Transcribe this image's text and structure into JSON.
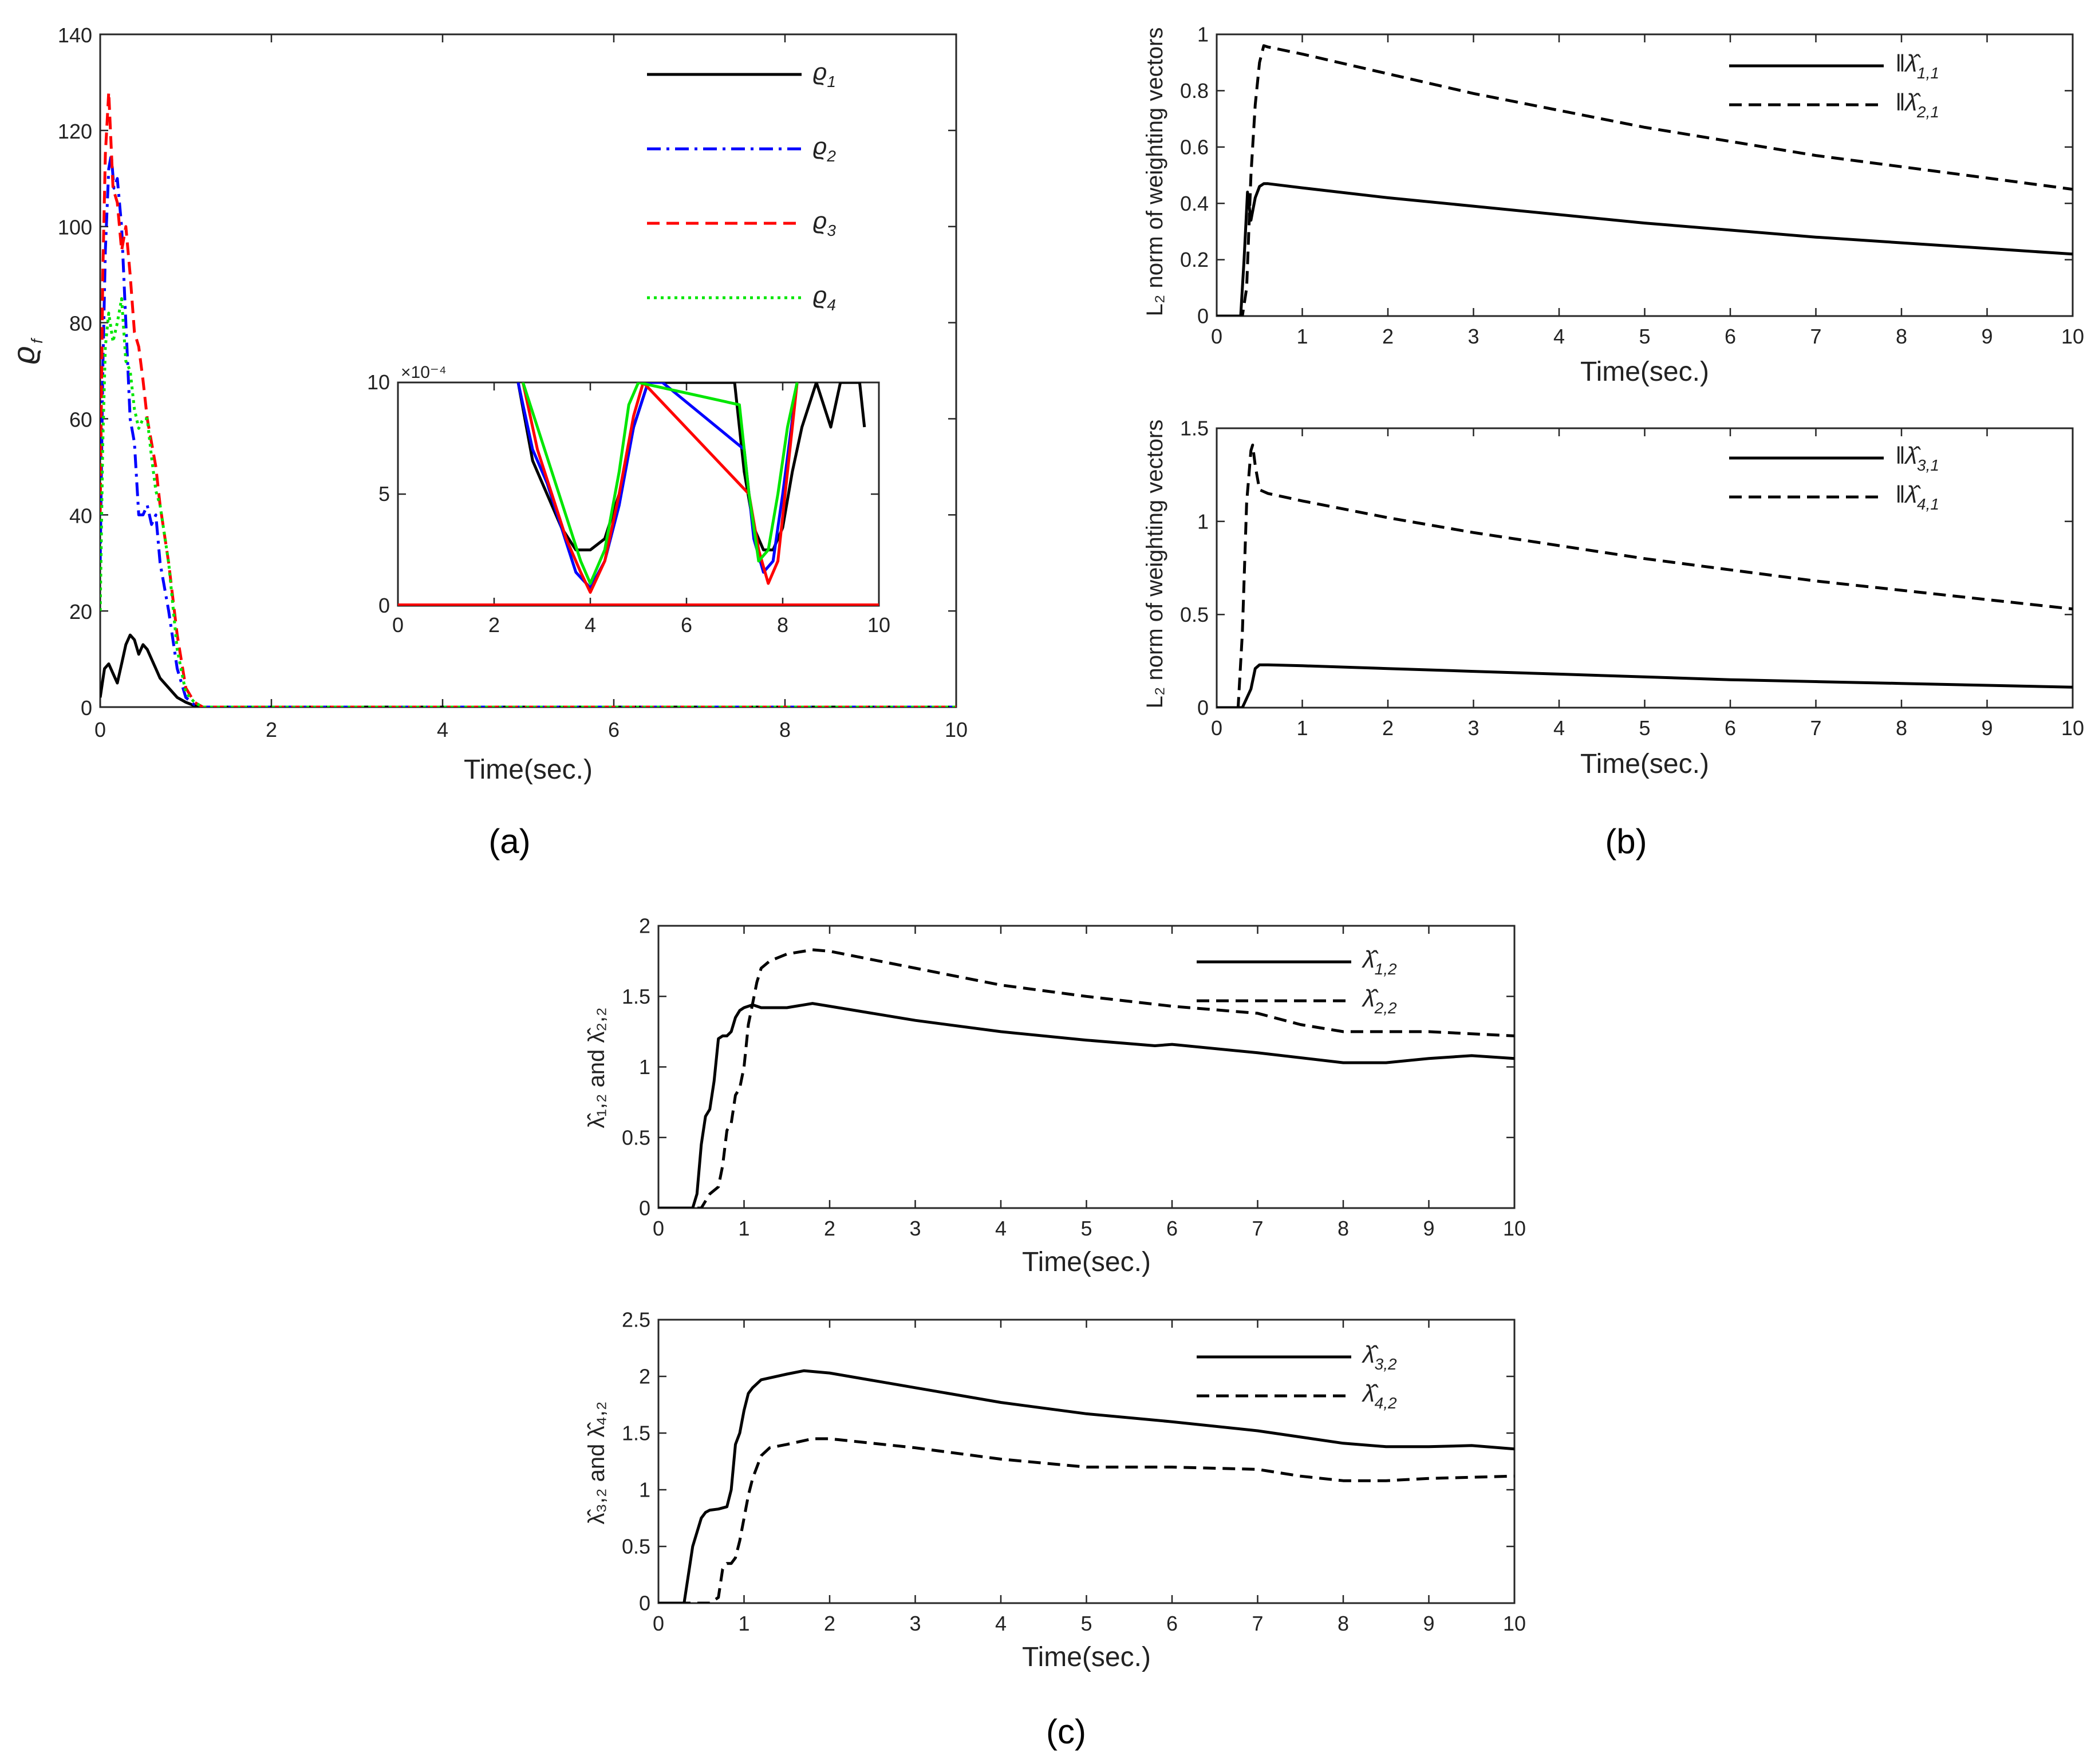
{
  "captions": {
    "a": "(a)",
    "b": "(b)",
    "c": "(c)"
  },
  "colors": {
    "axis": "#262626",
    "s1": "#000000",
    "s2": "#0000ff",
    "s3": "#ff0000",
    "s4": "#00e600"
  },
  "panel_a_ylabel": "ϱ",
  "panel_a_ylabel_sub": "f",
  "inset_exponent": "×10⁻⁴",
  "ylabel_norm": "L₂ norm of weighting vectors",
  "ylabel_c1": "λ̂̂₁,₂ and λ̂̂₂,₂",
  "ylabel_c2": "λ̂̂₃,₂ and λ̂̂₄,₂",
  "chart_data": [
    {
      "id": "a_main",
      "type": "line",
      "xlabel": "Time(sec.)",
      "ylabel": "ϱf",
      "xlim": [
        0,
        10
      ],
      "ylim": [
        0,
        140
      ],
      "xticks": [
        0,
        2,
        4,
        6,
        8,
        10
      ],
      "yticks": [
        0,
        20,
        40,
        60,
        80,
        100,
        120,
        140
      ],
      "series": [
        {
          "name": "ϱ",
          "sub": "1",
          "color": "#000000",
          "dash": "solid",
          "x": [
            0,
            0.05,
            0.1,
            0.15,
            0.2,
            0.25,
            0.3,
            0.35,
            0.4,
            0.45,
            0.5,
            0.55,
            0.6,
            0.65,
            0.7,
            0.8,
            0.9,
            1.0,
            1.1,
            1.2,
            10
          ],
          "y": [
            2,
            8,
            9,
            7,
            5,
            9,
            13,
            15,
            14,
            11,
            13,
            12,
            10,
            8,
            6,
            4,
            2,
            1,
            0.3,
            0,
            0
          ]
        },
        {
          "name": "ϱ",
          "sub": "2",
          "color": "#0000ff",
          "dash": "dashdot",
          "x": [
            0,
            0.03,
            0.06,
            0.1,
            0.13,
            0.16,
            0.2,
            0.25,
            0.3,
            0.35,
            0.4,
            0.45,
            0.5,
            0.55,
            0.6,
            0.65,
            0.7,
            0.8,
            0.9,
            1.0,
            1.1,
            1.2,
            10
          ],
          "y": [
            30,
            70,
            95,
            112,
            115,
            108,
            110,
            100,
            80,
            60,
            55,
            40,
            40,
            42,
            38,
            40,
            30,
            20,
            8,
            2,
            0.5,
            0,
            0
          ]
        },
        {
          "name": "ϱ",
          "sub": "3",
          "color": "#ff0000",
          "dash": "dashed",
          "x": [
            0,
            0.03,
            0.06,
            0.1,
            0.12,
            0.15,
            0.2,
            0.25,
            0.3,
            0.35,
            0.4,
            0.45,
            0.5,
            0.55,
            0.6,
            0.65,
            0.7,
            0.8,
            0.9,
            1.0,
            1.1,
            1.2,
            10
          ],
          "y": [
            40,
            90,
            115,
            128,
            120,
            108,
            105,
            95,
            100,
            90,
            78,
            75,
            68,
            60,
            55,
            50,
            42,
            30,
            15,
            4,
            1,
            0,
            0
          ]
        },
        {
          "name": "ϱ",
          "sub": "4",
          "color": "#00e600",
          "dash": "dotted",
          "x": [
            0,
            0.03,
            0.06,
            0.1,
            0.15,
            0.2,
            0.25,
            0.3,
            0.35,
            0.4,
            0.45,
            0.5,
            0.55,
            0.6,
            0.65,
            0.7,
            0.8,
            0.9,
            1.0,
            1.1,
            1.2,
            10
          ],
          "y": [
            20,
            55,
            75,
            82,
            76,
            80,
            85,
            72,
            70,
            62,
            58,
            60,
            60,
            52,
            45,
            42,
            30,
            12,
            3,
            1,
            0,
            0
          ]
        }
      ]
    },
    {
      "id": "a_inset",
      "type": "line",
      "xlabel": "",
      "ylabel": "",
      "xlim": [
        0,
        10
      ],
      "ylim": [
        0,
        10
      ],
      "xticks": [
        0,
        2,
        4,
        6,
        8,
        10
      ],
      "yticks": [
        0,
        5,
        10
      ],
      "series": [
        {
          "name": "ϱ1",
          "color": "#000000",
          "dash": "solid",
          "x": [
            2.5,
            2.8,
            3.1,
            3.4,
            3.7,
            4.0,
            4.3,
            4.6,
            4.9,
            5.2,
            7.0,
            7.2,
            7.4,
            7.6,
            7.8,
            8.0,
            8.2,
            8.4,
            8.7,
            9.0,
            9.2,
            9.6,
            9.7
          ],
          "y": [
            10,
            6.5,
            5,
            3.5,
            2.5,
            2.5,
            3,
            5,
            8,
            10,
            10,
            6,
            3.5,
            2.5,
            2.5,
            3.5,
            6,
            8,
            10,
            8,
            10,
            10,
            8
          ]
        },
        {
          "name": "ϱ2",
          "color": "#0000ff",
          "dash": "solid",
          "x": [
            2.5,
            2.8,
            3.1,
            3.4,
            3.7,
            4.0,
            4.3,
            4.6,
            4.9,
            5.2,
            5.5,
            7.2,
            7.4,
            7.6,
            7.8,
            8.0,
            8.3
          ],
          "y": [
            10,
            7,
            5.5,
            3.5,
            1.5,
            0.8,
            2,
            4.5,
            8,
            10,
            10,
            7,
            3,
            1.5,
            2,
            5,
            10
          ]
        },
        {
          "name": "ϱ3",
          "color": "#ff0000",
          "dash": "solid",
          "x": [
            2.6,
            2.9,
            3.2,
            3.5,
            3.8,
            4.0,
            4.3,
            4.6,
            4.9,
            5.1,
            7.3,
            7.5,
            7.7,
            7.9,
            8.1,
            8.3
          ],
          "y": [
            10,
            7,
            5,
            3,
            1.5,
            0.6,
            2,
            5,
            8.5,
            10,
            5,
            2.5,
            1,
            2,
            6,
            10
          ]
        },
        {
          "name": "ϱ4",
          "color": "#00e600",
          "dash": "solid",
          "x": [
            2.6,
            2.9,
            3.2,
            3.5,
            3.8,
            4.0,
            4.3,
            4.6,
            4.8,
            5.0,
            7.1,
            7.3,
            7.5,
            7.7,
            7.9,
            8.1,
            8.3
          ],
          "y": [
            10,
            8,
            6,
            4,
            2,
            1,
            2.5,
            6,
            9,
            10,
            9,
            5,
            2,
            2.5,
            5,
            8,
            10
          ]
        },
        {
          "name": "baseline",
          "color": "#ff0000",
          "dash": "solid",
          "width": 8,
          "x": [
            0,
            10
          ],
          "y": [
            0,
            0
          ]
        }
      ]
    },
    {
      "id": "b_top",
      "type": "line",
      "xlabel": "Time(sec.)",
      "ylabel": "L2 norm of weighting vectors",
      "xlim": [
        0,
        10
      ],
      "ylim": [
        0,
        1
      ],
      "xticks": [
        0,
        1,
        2,
        3,
        4,
        5,
        6,
        7,
        8,
        9,
        10
      ],
      "yticks": [
        0,
        0.2,
        0.4,
        0.6,
        0.8,
        1
      ],
      "series": [
        {
          "name": "‖λ̂",
          "sub": "1,1",
          "color": "#000000",
          "dash": "solid",
          "x": [
            0,
            0.28,
            0.32,
            0.36,
            0.4,
            0.45,
            0.5,
            0.55,
            0.6,
            1,
            2,
            3,
            4,
            5,
            6,
            7,
            8,
            9,
            10
          ],
          "y": [
            0,
            0,
            0.2,
            0.44,
            0.34,
            0.42,
            0.46,
            0.47,
            0.47,
            0.455,
            0.42,
            0.39,
            0.36,
            0.33,
            0.305,
            0.28,
            0.26,
            0.24,
            0.22
          ]
        },
        {
          "name": "‖λ̂",
          "sub": "2,1",
          "color": "#000000",
          "dash": "dashed",
          "x": [
            0,
            0.3,
            0.35,
            0.4,
            0.45,
            0.5,
            0.55,
            0.6,
            1,
            2,
            3,
            4,
            5,
            6,
            7,
            8,
            9,
            10
          ],
          "y": [
            0,
            0,
            0.1,
            0.5,
            0.75,
            0.9,
            0.96,
            0.955,
            0.93,
            0.86,
            0.79,
            0.73,
            0.67,
            0.62,
            0.57,
            0.53,
            0.49,
            0.45
          ]
        }
      ]
    },
    {
      "id": "b_bottom",
      "type": "line",
      "xlabel": "Time(sec.)",
      "ylabel": "L2 norm of weighting vectors",
      "xlim": [
        0,
        10
      ],
      "ylim": [
        0,
        1.5
      ],
      "xticks": [
        0,
        1,
        2,
        3,
        4,
        5,
        6,
        7,
        8,
        9,
        10
      ],
      "yticks": [
        0,
        0.5,
        1,
        1.5
      ],
      "series": [
        {
          "name": "‖λ̂",
          "sub": "3,1",
          "color": "#000000",
          "dash": "solid",
          "x": [
            0,
            0.3,
            0.4,
            0.45,
            0.5,
            0.6,
            1,
            2,
            3,
            4,
            5,
            6,
            7,
            8,
            9,
            10
          ],
          "y": [
            0,
            0,
            0.1,
            0.21,
            0.23,
            0.23,
            0.225,
            0.21,
            0.195,
            0.18,
            0.165,
            0.15,
            0.14,
            0.13,
            0.12,
            0.11
          ]
        },
        {
          "name": "‖λ̂",
          "sub": "4,1",
          "color": "#000000",
          "dash": "dashed",
          "x": [
            0,
            0.25,
            0.3,
            0.35,
            0.4,
            0.42,
            0.45,
            0.5,
            0.6,
            1,
            2,
            3,
            4,
            5,
            6,
            7,
            8,
            9,
            10
          ],
          "y": [
            0,
            0,
            0.4,
            1.1,
            1.38,
            1.41,
            1.3,
            1.17,
            1.15,
            1.11,
            1.02,
            0.94,
            0.87,
            0.8,
            0.74,
            0.68,
            0.63,
            0.58,
            0.53
          ]
        }
      ]
    },
    {
      "id": "c_top",
      "type": "line",
      "xlabel": "Time(sec.)",
      "ylabel": "λ̂1,2 and λ̂2,2",
      "xlim": [
        0,
        10
      ],
      "ylim": [
        0,
        2
      ],
      "xticks": [
        0,
        1,
        2,
        3,
        4,
        5,
        6,
        7,
        8,
        9,
        10
      ],
      "yticks": [
        0,
        0.5,
        1,
        1.5,
        2
      ],
      "series": [
        {
          "name": "λ̂̂",
          "sub": "1,2",
          "color": "#000000",
          "dash": "solid",
          "x": [
            0,
            0.4,
            0.45,
            0.5,
            0.55,
            0.6,
            0.65,
            0.7,
            0.75,
            0.8,
            0.85,
            0.9,
            0.95,
            1.0,
            1.1,
            1.2,
            1.5,
            1.8,
            2,
            3,
            4,
            5,
            5.8,
            6,
            7,
            8,
            8.5,
            9,
            9.5,
            10
          ],
          "y": [
            0,
            0,
            0.1,
            0.45,
            0.65,
            0.7,
            0.9,
            1.2,
            1.22,
            1.22,
            1.25,
            1.35,
            1.4,
            1.42,
            1.44,
            1.42,
            1.42,
            1.45,
            1.43,
            1.33,
            1.25,
            1.19,
            1.15,
            1.16,
            1.1,
            1.03,
            1.03,
            1.06,
            1.08,
            1.06
          ]
        },
        {
          "name": "λ̂̂",
          "sub": "2,2",
          "color": "#000000",
          "dash": "dashed",
          "x": [
            0,
            0.5,
            0.6,
            0.7,
            0.75,
            0.8,
            0.85,
            0.9,
            0.95,
            1.0,
            1.05,
            1.1,
            1.15,
            1.2,
            1.3,
            1.5,
            1.8,
            2,
            3,
            4,
            5,
            6,
            7,
            7.5,
            8,
            9,
            10
          ],
          "y": [
            0,
            0,
            0.1,
            0.15,
            0.3,
            0.55,
            0.6,
            0.8,
            0.85,
            1.0,
            1.3,
            1.45,
            1.6,
            1.7,
            1.75,
            1.8,
            1.83,
            1.82,
            1.7,
            1.58,
            1.5,
            1.43,
            1.38,
            1.3,
            1.25,
            1.25,
            1.22
          ]
        }
      ]
    },
    {
      "id": "c_bottom",
      "type": "line",
      "xlabel": "Time(sec.)",
      "ylabel": "λ̂3,2 and λ̂4,2",
      "xlim": [
        0,
        10
      ],
      "ylim": [
        0,
        2.5
      ],
      "xticks": [
        0,
        1,
        2,
        3,
        4,
        5,
        6,
        7,
        8,
        9,
        10
      ],
      "yticks": [
        0,
        0.5,
        1,
        1.5,
        2,
        2.5
      ],
      "series": [
        {
          "name": "λ̂̂",
          "sub": "3,2",
          "color": "#000000",
          "dash": "solid",
          "x": [
            0,
            0.3,
            0.4,
            0.5,
            0.55,
            0.6,
            0.7,
            0.8,
            0.85,
            0.9,
            0.95,
            1.0,
            1.05,
            1.1,
            1.2,
            1.5,
            1.7,
            2,
            3,
            4,
            5,
            6,
            7,
            8,
            8.5,
            9,
            9.5,
            10
          ],
          "y": [
            0,
            0,
            0.5,
            0.75,
            0.8,
            0.82,
            0.83,
            0.85,
            1.0,
            1.4,
            1.5,
            1.7,
            1.85,
            1.9,
            1.97,
            2.02,
            2.05,
            2.03,
            1.9,
            1.77,
            1.67,
            1.6,
            1.52,
            1.41,
            1.38,
            1.38,
            1.39,
            1.36
          ]
        },
        {
          "name": "λ̂̂",
          "sub": "4,2",
          "color": "#000000",
          "dash": "dashed",
          "x": [
            0,
            0.6,
            0.7,
            0.75,
            0.8,
            0.85,
            0.9,
            0.95,
            1.0,
            1.05,
            1.1,
            1.2,
            1.3,
            1.5,
            1.8,
            2,
            3,
            4,
            5,
            6,
            7,
            7.5,
            8,
            8.5,
            9,
            10
          ],
          "y": [
            0,
            0,
            0.05,
            0.3,
            0.35,
            0.35,
            0.4,
            0.55,
            0.75,
            0.95,
            1.1,
            1.3,
            1.37,
            1.4,
            1.45,
            1.45,
            1.37,
            1.27,
            1.2,
            1.2,
            1.18,
            1.12,
            1.08,
            1.08,
            1.1,
            1.12
          ]
        }
      ]
    }
  ]
}
